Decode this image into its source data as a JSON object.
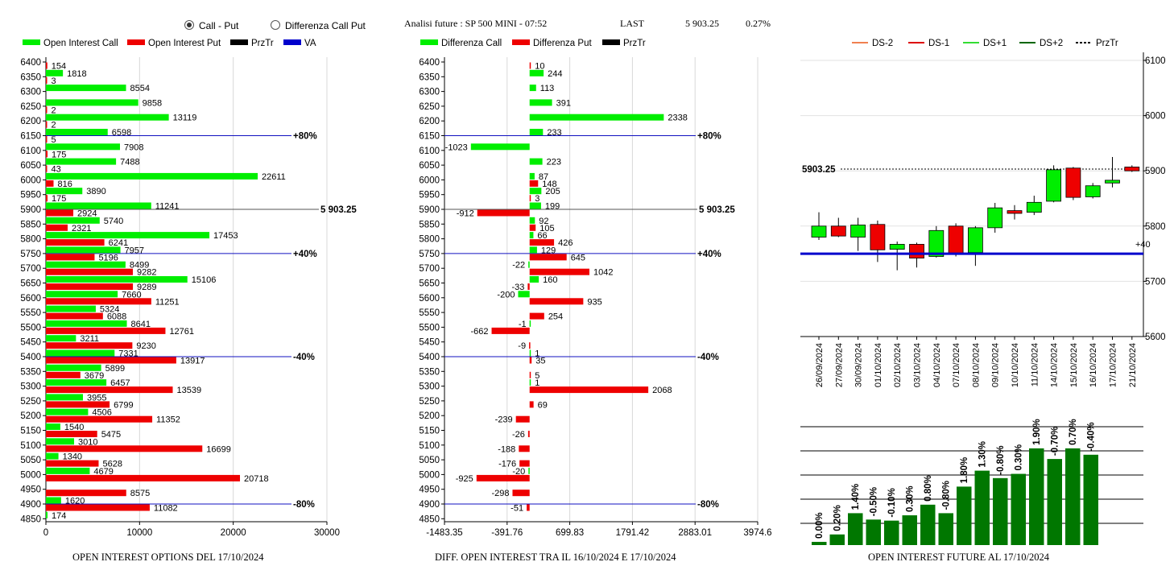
{
  "header": {
    "radio_call_put": "Call - Put",
    "radio_diff": "Differenza Call Put",
    "instrument": "Analisi future : SP 500 MINI - 07:52",
    "last_label": "LAST",
    "last_value": "5 903.25",
    "change_pct": "0.27%"
  },
  "colors": {
    "call": "#00ee00",
    "put": "#ee0000",
    "prztr": "#000000",
    "va": "#0000cc",
    "oi_future": "#007700"
  },
  "chart_data": [
    {
      "type": "bar",
      "title": "OPEN INTEREST OPTIONS DEL 17/10/2024",
      "legend": [
        "Open Interest Call",
        "Open Interest Put",
        "PrzTr",
        "VA"
      ],
      "categories": [
        "6400",
        "6350",
        "6300",
        "6250",
        "6200",
        "6150",
        "6100",
        "6050",
        "6000",
        "5950",
        "5900",
        "5850",
        "5800",
        "5750",
        "5700",
        "5650",
        "5600",
        "5550",
        "5500",
        "5450",
        "5400",
        "5350",
        "5300",
        "5250",
        "5200",
        "5150",
        "5100",
        "5050",
        "5000",
        "4950",
        "4900",
        "4850"
      ],
      "series": [
        {
          "name": "Open Interest Call",
          "values": [
            null,
            1818,
            8554,
            9858,
            13119,
            6598,
            7908,
            7488,
            22611,
            3890,
            11241,
            5740,
            17453,
            7957,
            8499,
            15106,
            7660,
            5324,
            8641,
            3211,
            7331,
            5899,
            6457,
            3955,
            4506,
            1540,
            3010,
            1340,
            4679,
            null,
            1620,
            174
          ]
        },
        {
          "name": "Open Interest Put",
          "values": [
            154,
            3,
            null,
            2,
            2,
            5,
            175,
            43,
            816,
            175,
            2924,
            2321,
            6241,
            5196,
            9282,
            9289,
            11251,
            6088,
            12761,
            9230,
            13917,
            3679,
            13539,
            6799,
            11352,
            5475,
            16699,
            5628,
            20718,
            8575,
            11082,
            null
          ]
        }
      ],
      "xlim": [
        0,
        30000
      ],
      "xticks": [
        "0",
        "10000",
        "20000",
        "30000"
      ],
      "reference_lines": [
        {
          "category": "6150",
          "label": "+80%"
        },
        {
          "category": "5900",
          "label": "5 903.25"
        },
        {
          "category": "5750",
          "label": "+40%"
        },
        {
          "category": "5400",
          "label": "-40%"
        },
        {
          "category": "4900",
          "label": "-80%"
        }
      ]
    },
    {
      "type": "bar",
      "title": "DIFF. OPEN INTEREST TRA IL 16/10/2024 E 17/10/2024",
      "legend": [
        "Differenza Call",
        "Differenza Put",
        "PrzTr"
      ],
      "categories": [
        "6400",
        "6350",
        "6300",
        "6250",
        "6200",
        "6150",
        "6100",
        "6050",
        "6000",
        "5950",
        "5900",
        "5850",
        "5800",
        "5750",
        "5700",
        "5650",
        "5600",
        "5550",
        "5500",
        "5450",
        "5400",
        "5350",
        "5300",
        "5250",
        "5200",
        "5150",
        "5100",
        "5050",
        "5000",
        "4950",
        "4900",
        "4850"
      ],
      "series": [
        {
          "name": "Differenza Call",
          "values": [
            null,
            244,
            113,
            391,
            2338,
            233,
            -1023,
            223,
            87,
            205,
            199,
            92,
            66,
            129,
            -22,
            160,
            -200,
            null,
            -1,
            null,
            1,
            null,
            1,
            null,
            null,
            null,
            null,
            null,
            -20,
            null,
            null,
            null
          ]
        },
        {
          "name": "Differenza Put",
          "values": [
            10,
            null,
            null,
            null,
            null,
            null,
            null,
            null,
            148,
            3,
            -912,
            105,
            426,
            645,
            1042,
            -33,
            935,
            254,
            -662,
            -9,
            35,
            5,
            2068,
            69,
            -239,
            -26,
            -188,
            -176,
            -925,
            -298,
            -51,
            null
          ]
        }
      ],
      "xlim": [
        -1483.35,
        3974.6
      ],
      "xticks": [
        "-1483.35",
        "-391.76",
        "699.83",
        "1791.42",
        "2883.01",
        "3974.6"
      ],
      "reference_lines": [
        {
          "category": "6150",
          "label": "+80%"
        },
        {
          "category": "5900",
          "label": "5 903.25"
        },
        {
          "category": "5750",
          "label": "+40%"
        },
        {
          "category": "5400",
          "label": "-40%"
        },
        {
          "category": "4900",
          "label": "-80%"
        }
      ]
    },
    {
      "type": "candlestick",
      "legend": [
        "DS-2",
        "DS-1",
        "DS+1",
        "DS+2",
        "PrzTr"
      ],
      "legend_colors": [
        "#f08050",
        "#dd0000",
        "#33dd33",
        "#006600",
        "#000000"
      ],
      "categories": [
        "26/09/2024",
        "27/09/2024",
        "30/09/2024",
        "01/10/2024",
        "02/10/2024",
        "03/10/2024",
        "04/10/2024",
        "07/10/2024",
        "08/10/2024",
        "09/10/2024",
        "10/10/2024",
        "11/10/2024",
        "14/10/2024",
        "15/10/2024",
        "16/10/2024",
        "17/10/2024",
        "21/10/2024"
      ],
      "candles": [
        {
          "open": 5780,
          "close": 5800,
          "high": 5825,
          "low": 5775
        },
        {
          "open": 5800,
          "close": 5782,
          "high": 5815,
          "low": 5780
        },
        {
          "open": 5780,
          "close": 5802,
          "high": 5815,
          "low": 5755
        },
        {
          "open": 5803,
          "close": 5757,
          "high": 5810,
          "low": 5735
        },
        {
          "open": 5758,
          "close": 5767,
          "high": 5772,
          "low": 5720
        },
        {
          "open": 5767,
          "close": 5742,
          "high": 5770,
          "low": 5725
        },
        {
          "open": 5745,
          "close": 5792,
          "high": 5800,
          "low": 5743
        },
        {
          "open": 5800,
          "close": 5750,
          "high": 5805,
          "low": 5745
        },
        {
          "open": 5752,
          "close": 5797,
          "high": 5800,
          "low": 5728
        },
        {
          "open": 5797,
          "close": 5833,
          "high": 5842,
          "low": 5788
        },
        {
          "open": 5828,
          "close": 5823,
          "high": 5838,
          "low": 5812
        },
        {
          "open": 5825,
          "close": 5843,
          "high": 5855,
          "low": 5820
        },
        {
          "open": 5845,
          "close": 5902,
          "high": 5910,
          "low": 5843
        },
        {
          "open": 5905,
          "close": 5852,
          "high": 5907,
          "low": 5847
        },
        {
          "open": 5853,
          "close": 5873,
          "high": 5878,
          "low": 5850
        },
        {
          "open": 5878,
          "close": 5883,
          "high": 5925,
          "low": 5870
        },
        {
          "open": 5907,
          "close": 5900,
          "high": 5910,
          "low": 5898
        }
      ],
      "ylim": [
        5600,
        6100
      ],
      "yticks": [
        "5600",
        "5700",
        "5800",
        "5900",
        "6000",
        "6100"
      ],
      "last_line": {
        "value": 5903.25,
        "label": "5903.25"
      },
      "va_line": {
        "value": 5750,
        "label": "+40"
      }
    },
    {
      "type": "bar",
      "title": "OPEN INTEREST FUTURE AL 17/10/2024",
      "labels": [
        "0.00%",
        "0.20%",
        "1.40%",
        "-0.50%",
        "-0.10%",
        "0.30%",
        "0.80%",
        "-0.80%",
        "1.80%",
        "1.30%",
        "-0.80%",
        "0.30%",
        "1.90%",
        "-0.70%",
        "0.70%",
        "-0.40%"
      ],
      "values": [
        0.03,
        0.1,
        0.3,
        0.24,
        0.23,
        0.28,
        0.38,
        0.3,
        0.55,
        0.7,
        0.63,
        0.67,
        0.91,
        0.81,
        0.91,
        0.85
      ]
    }
  ]
}
